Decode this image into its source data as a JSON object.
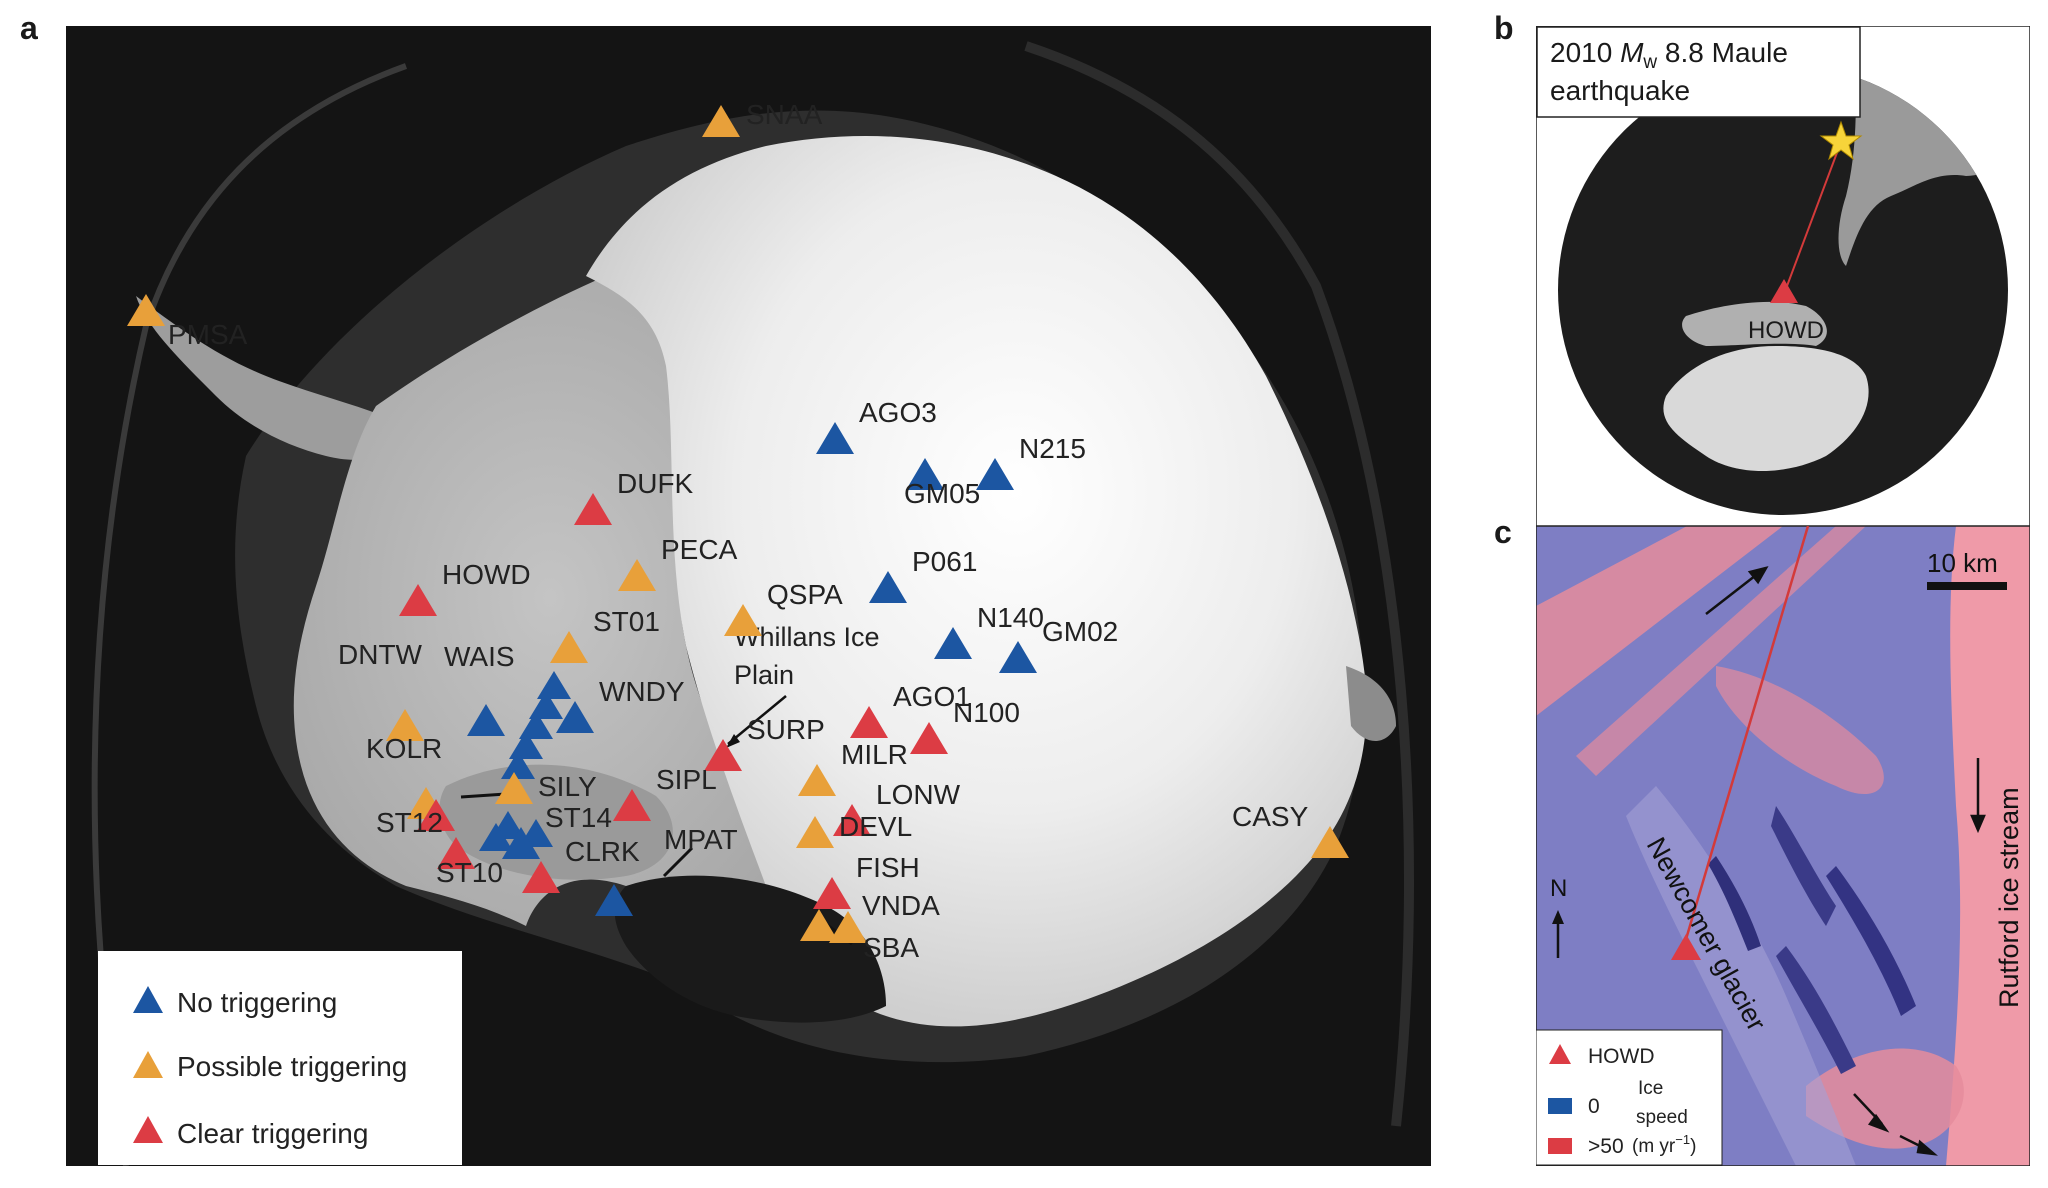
{
  "panel_labels": {
    "a": "a",
    "b": "b",
    "c": "c"
  },
  "colors": {
    "no_triggering": "#1c56a2",
    "possible_triggering": "#e8a03a",
    "clear_triggering": "#dc3c44",
    "ocean": "#111111",
    "ice": "#f2f2f2",
    "fast_ice": "#e58c9c",
    "slow_ice": "#7e7ec4",
    "star": "#f7d43a"
  },
  "panel_a": {
    "stations": [
      {
        "name": "SNAA",
        "category": "possible"
      },
      {
        "name": "PMSA",
        "category": "possible"
      },
      {
        "name": "AGO3",
        "category": "none"
      },
      {
        "name": "GM05",
        "category": "none"
      },
      {
        "name": "N215",
        "category": "none"
      },
      {
        "name": "DUFK",
        "category": "clear"
      },
      {
        "name": "PECA",
        "category": "possible"
      },
      {
        "name": "HOWD",
        "category": "clear"
      },
      {
        "name": "P061",
        "category": "none"
      },
      {
        "name": "QSPA",
        "category": "possible"
      },
      {
        "name": "N140",
        "category": "none"
      },
      {
        "name": "GM02",
        "category": "none"
      },
      {
        "name": "ST01",
        "category": "possible"
      },
      {
        "name": "DNTW",
        "category": "possible"
      },
      {
        "name": "WAIS",
        "category": "none"
      },
      {
        "name": "WNDY",
        "category": "none"
      },
      {
        "name": "AGO1",
        "category": "clear"
      },
      {
        "name": "N100",
        "category": "clear"
      },
      {
        "name": "SURP",
        "category": "clear"
      },
      {
        "name": "KOLR",
        "category": "possible"
      },
      {
        "name": "MILR",
        "category": "possible"
      },
      {
        "name": "SILY",
        "category": "possible"
      },
      {
        "name": "SIPL",
        "category": "clear"
      },
      {
        "name": "LONW",
        "category": "clear"
      },
      {
        "name": "ST12",
        "category": "clear"
      },
      {
        "name": "ST14",
        "category": "none"
      },
      {
        "name": "DEVL",
        "category": "possible"
      },
      {
        "name": "CASY",
        "category": "possible"
      },
      {
        "name": "MPAT",
        "category": "none"
      },
      {
        "name": "CLRK",
        "category": "clear"
      },
      {
        "name": "ST10",
        "category": "clear"
      },
      {
        "name": "FISH",
        "category": "clear"
      },
      {
        "name": "VNDA",
        "category": "possible"
      },
      {
        "name": "SBA",
        "category": "possible"
      }
    ],
    "region_label_1": "Whillans Ice",
    "region_label_2": "Plain",
    "legend": [
      {
        "label": "No triggering",
        "category": "none"
      },
      {
        "label": "Possible triggering",
        "category": "possible"
      },
      {
        "label": "Clear triggering",
        "category": "clear"
      }
    ]
  },
  "panel_b": {
    "title_line1_prefix": "2010 ",
    "title_M": "M",
    "title_w": "w",
    "title_line1_suffix": " 8.8 Maule",
    "title_line2": "earthquake",
    "station_label": "HOWD"
  },
  "panel_c": {
    "scale_label": "10 km",
    "north_label": "N",
    "glacier_label": "Newcomer glacier",
    "stream_label": "Rutford ice stream",
    "legend_station": "HOWD",
    "legend_zero": "0",
    "legend_fast": ">50",
    "legend_units": "(m yr",
    "legend_units_exp": "−1",
    "legend_units_close": ")",
    "legend_ice": "Ice",
    "legend_speed": "speed"
  }
}
